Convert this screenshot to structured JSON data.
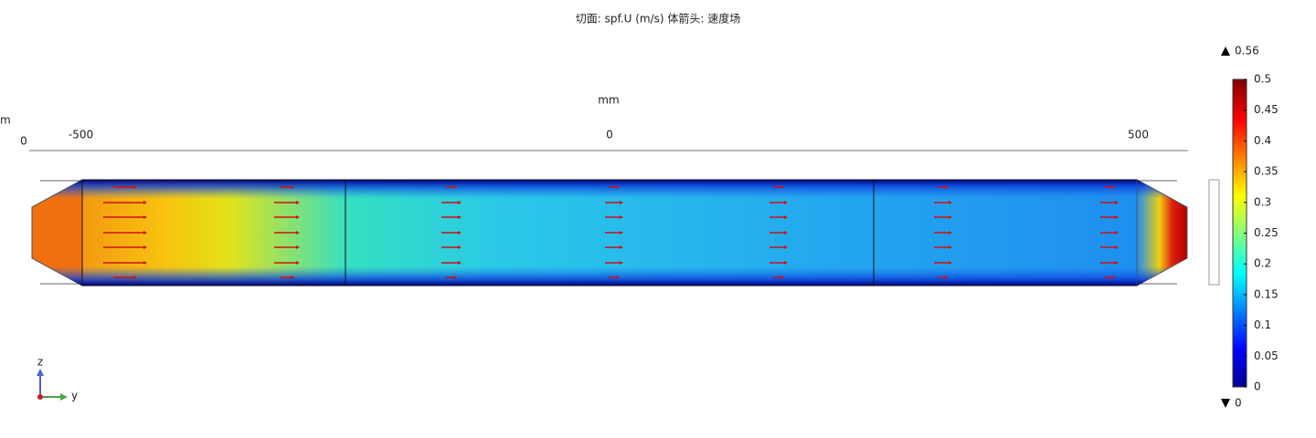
{
  "title": "切面: spf.U (m/s)  体箭头: 速度场",
  "axis": {
    "unit": "mm",
    "ticks": [
      -500,
      0,
      500
    ],
    "left_unit": "m",
    "left_tick": "0"
  },
  "colorbar": {
    "max_label": "0.56",
    "min_label": "0",
    "range": [
      0,
      0.5
    ],
    "ticks": [
      0,
      0.05,
      0.1,
      0.15,
      0.2,
      0.25,
      0.3,
      0.35,
      0.4,
      0.45,
      0.5
    ]
  },
  "triad": {
    "vertical": "z",
    "horizontal": "y"
  }
}
